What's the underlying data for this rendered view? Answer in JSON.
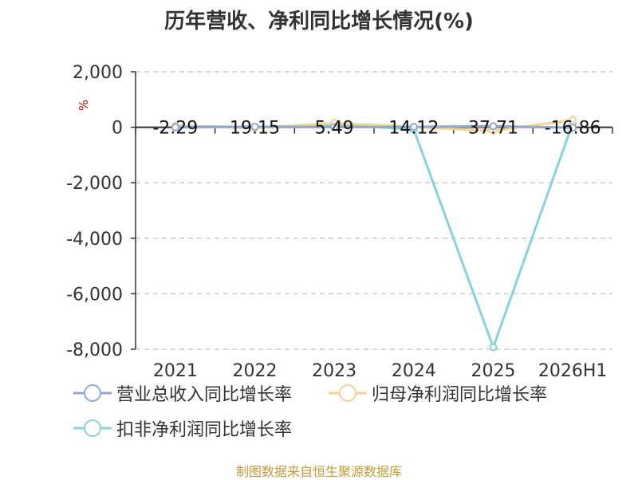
{
  "title": "历年营收、净利同比增长情况(%)",
  "source": "制图数据来自恒生聚源数据库",
  "chart_data": {
    "type": "line",
    "title": "历年营收、净利同比增长情况(%)",
    "ylabel": "%",
    "xlabel": "",
    "categories": [
      "2021",
      "2022",
      "2023",
      "2024",
      "2025",
      "2026H1"
    ],
    "ylim": [
      -8000,
      2000
    ],
    "yticks": [
      2000,
      0,
      -2000,
      -4000,
      -6000,
      -8000
    ],
    "ytick_labels": [
      "2,000",
      "0",
      "-2,000",
      "-4,000",
      "-6,000",
      "-8,000"
    ],
    "grid": true,
    "legend_position": "bottom",
    "series": [
      {
        "name": "营业总收入同比增长率",
        "color": "#8fa9d4",
        "values": [
          -2.29,
          19.15,
          5.49,
          14.12,
          37.71,
          -16.86
        ],
        "labels": [
          "-2.29",
          "19.15",
          "5.49",
          "14.12",
          "37.71",
          "-16.86"
        ]
      },
      {
        "name": "归母净利润同比增长率",
        "color": "#f6d28e",
        "values": [
          40,
          -30,
          150,
          10,
          -130,
          260
        ]
      },
      {
        "name": "扣非净利润同比增长率",
        "color": "#86d3da",
        "values": [
          50,
          0,
          100,
          -80,
          -7930,
          150
        ]
      }
    ]
  }
}
